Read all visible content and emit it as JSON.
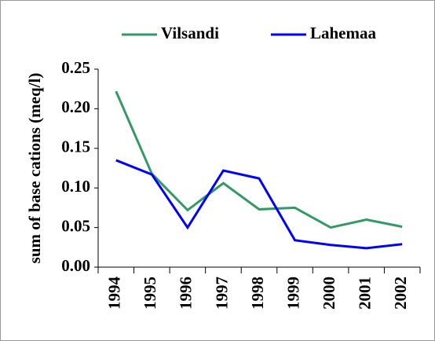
{
  "chart_data": {
    "type": "line",
    "y_label": "sum of base cations (meq/l)",
    "categories": [
      "1994",
      "1995",
      "1996",
      "1997",
      "1998",
      "1999",
      "2000",
      "2001",
      "2002"
    ],
    "series": [
      {
        "name": "Vilsandi",
        "color": "#339966",
        "values": [
          0.222,
          0.118,
          0.072,
          0.106,
          0.073,
          0.075,
          0.05,
          0.06,
          0.051
        ]
      },
      {
        "name": "Lahemaa",
        "color": "#0000ff",
        "values": [
          0.135,
          0.117,
          0.05,
          0.122,
          0.112,
          0.034,
          0.028,
          0.024,
          0.029
        ]
      }
    ],
    "ylim": [
      0,
      0.25
    ],
    "yticks": [
      {
        "value": 0,
        "label": "0.00"
      },
      0.05,
      {
        "value": 0.1,
        "label": "0.10"
      },
      0.15,
      {
        "value": 0.2,
        "label": "0.20"
      },
      0.25
    ]
  }
}
